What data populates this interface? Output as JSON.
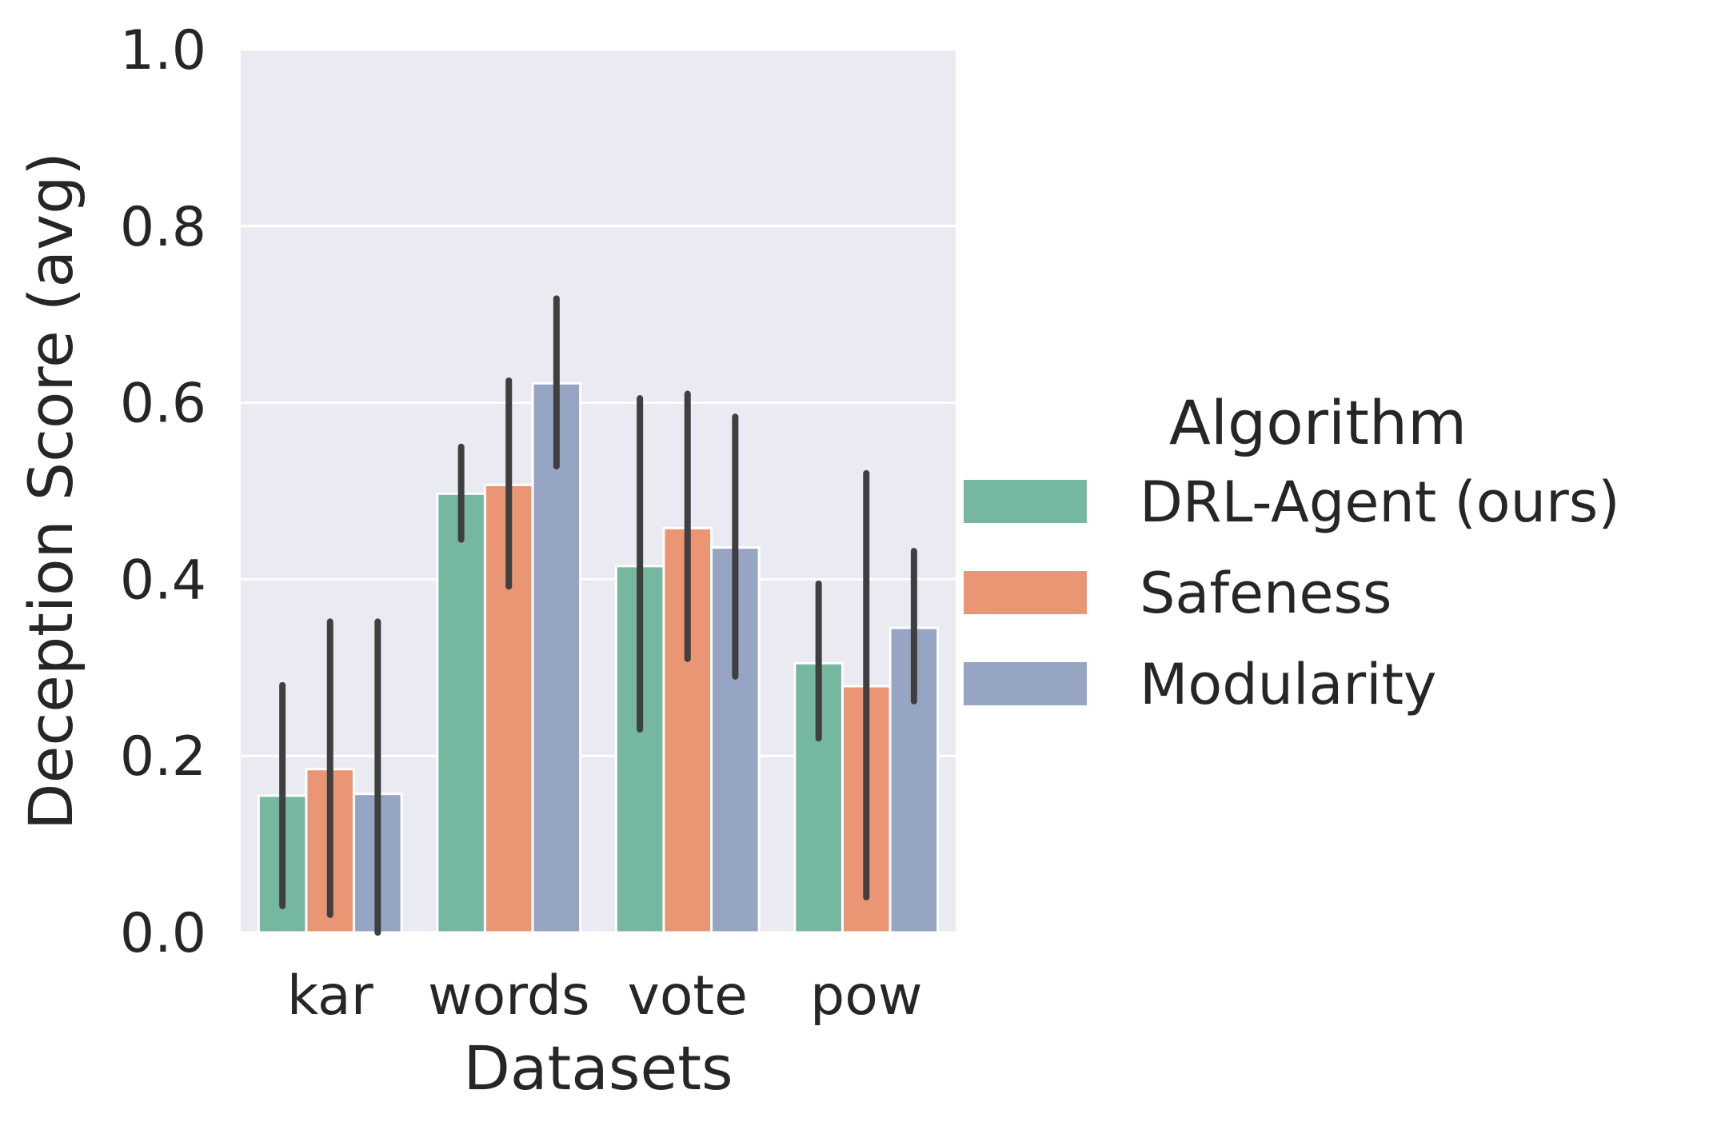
{
  "chart_data": {
    "type": "bar",
    "xlabel": "Datasets",
    "ylabel": "Deception Score (avg)",
    "ylim": [
      0,
      1.0
    ],
    "yticks": [
      "0.0",
      "0.2",
      "0.4",
      "0.6",
      "0.8",
      "1.0"
    ],
    "categories": [
      "kar",
      "words",
      "vote",
      "pow"
    ],
    "grid": true,
    "legend": {
      "title": "Algorithm",
      "placement": "right"
    },
    "series": [
      {
        "name": "DRL-Agent (ours)",
        "color": "#76b7a0",
        "values": [
          0.155,
          0.497,
          0.415,
          0.305
        ],
        "ci_low": [
          0.03,
          0.445,
          0.23,
          0.22
        ],
        "ci_high": [
          0.28,
          0.55,
          0.605,
          0.395
        ]
      },
      {
        "name": "Safeness",
        "color": "#ea9675",
        "values": [
          0.185,
          0.507,
          0.458,
          0.279
        ],
        "ci_low": [
          0.02,
          0.392,
          0.31,
          0.04
        ],
        "ci_high": [
          0.352,
          0.625,
          0.61,
          0.52
        ]
      },
      {
        "name": "Modularity",
        "color": "#96a5c3",
        "values": [
          0.157,
          0.622,
          0.436,
          0.345
        ],
        "ci_low": [
          0.0,
          0.528,
          0.29,
          0.262
        ],
        "ci_high": [
          0.352,
          0.718,
          0.584,
          0.432
        ]
      }
    ]
  }
}
